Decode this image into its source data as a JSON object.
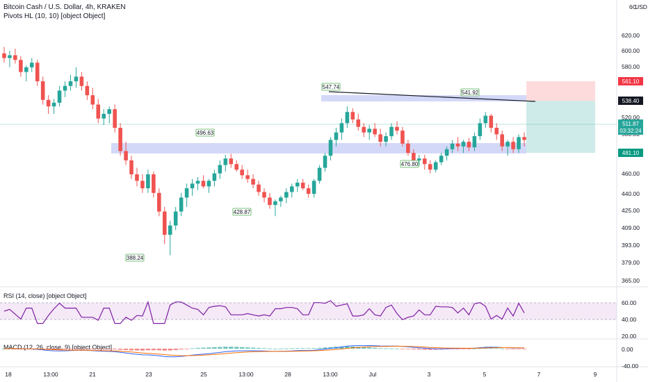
{
  "header": {
    "title": "Bitcoin Cash / U.S. Dollar, 4h, KRAKEN",
    "indicator": "Pivots HL (10, 10) [object Object]"
  },
  "price_axis": {
    "currency_label": "USD",
    "top_partial": "6C",
    "ticks": [
      "620.00",
      "600.00",
      "580.00",
      "560.00",
      "540.00",
      "520.00",
      "500.00",
      "480.00",
      "460.00",
      "440.00",
      "425.00",
      "409.00",
      "393.00",
      "379.00",
      "365.00"
    ]
  },
  "price_tags": [
    {
      "label": "561.10",
      "type": "stop",
      "color": "#f23645"
    },
    {
      "label": "538.40",
      "type": "entry",
      "color": "#131722"
    },
    {
      "label": "511.87",
      "type": "last",
      "color": "#26a69a",
      "countdown": "03:32:24"
    },
    {
      "label": "481.10",
      "type": "target",
      "color": "#089981"
    }
  ],
  "time_axis": {
    "labels": [
      "18",
      "13:00",
      "21",
      "23",
      "25",
      "13:00",
      "28",
      "13:00",
      "Jul",
      "3",
      "5",
      "7",
      "9"
    ]
  },
  "pivots": [
    "547.74",
    "541.92",
    "496.63",
    "428.87",
    "476.80",
    "388.24"
  ],
  "rsi": {
    "title": "RSI (14, close) [object Object]",
    "ticks": [
      "60.00",
      "40.00",
      "20.00"
    ]
  },
  "macd": {
    "title": "MACD (12, 26, close, 9) [object Object]",
    "ticks": [
      "0.00",
      "-40.00"
    ]
  },
  "chart_data": {
    "type": "candlestick",
    "symbol": "BCHUSD",
    "timeframe": "4h",
    "ylim": [
      360,
      640
    ],
    "candles": [
      [
        605,
        612,
        595,
        600
      ],
      [
        600,
        608,
        590,
        603
      ],
      [
        603,
        610,
        594,
        598
      ],
      [
        598,
        602,
        580,
        585
      ],
      [
        585,
        592,
        575,
        590
      ],
      [
        590,
        600,
        585,
        595
      ],
      [
        595,
        598,
        570,
        575
      ],
      [
        575,
        580,
        550,
        555
      ],
      [
        555,
        560,
        540,
        548
      ],
      [
        548,
        556,
        540,
        552
      ],
      [
        552,
        570,
        548,
        565
      ],
      [
        565,
        575,
        558,
        570
      ],
      [
        570,
        582,
        565,
        575
      ],
      [
        575,
        590,
        568,
        580
      ],
      [
        580,
        585,
        565,
        570
      ],
      [
        570,
        575,
        555,
        560
      ],
      [
        560,
        568,
        545,
        550
      ],
      [
        550,
        556,
        530,
        535
      ],
      [
        535,
        545,
        528,
        540
      ],
      [
        540,
        548,
        530,
        545
      ],
      [
        545,
        550,
        520,
        525
      ],
      [
        525,
        530,
        495,
        500
      ],
      [
        500,
        510,
        485,
        490
      ],
      [
        490,
        495,
        470,
        475
      ],
      [
        475,
        482,
        462,
        468
      ],
      [
        468,
        475,
        455,
        460
      ],
      [
        460,
        480,
        455,
        475
      ],
      [
        475,
        478,
        450,
        455
      ],
      [
        455,
        460,
        430,
        435
      ],
      [
        435,
        440,
        400,
        410
      ],
      [
        410,
        425,
        388,
        420
      ],
      [
        420,
        440,
        415,
        435
      ],
      [
        435,
        455,
        430,
        450
      ],
      [
        450,
        465,
        440,
        460
      ],
      [
        460,
        470,
        452,
        465
      ],
      [
        465,
        472,
        458,
        468
      ],
      [
        468,
        474,
        460,
        462
      ],
      [
        462,
        470,
        455,
        468
      ],
      [
        468,
        480,
        462,
        476
      ],
      [
        476,
        490,
        470,
        485
      ],
      [
        485,
        496,
        478,
        492
      ],
      [
        492,
        497,
        482,
        486
      ],
      [
        486,
        490,
        478,
        480
      ],
      [
        480,
        485,
        470,
        474
      ],
      [
        474,
        480,
        466,
        470
      ],
      [
        470,
        475,
        460,
        464
      ],
      [
        464,
        468,
        452,
        456
      ],
      [
        456,
        460,
        445,
        450
      ],
      [
        450,
        455,
        438,
        442
      ],
      [
        442,
        448,
        430,
        446
      ],
      [
        446,
        452,
        440,
        450
      ],
      [
        450,
        460,
        444,
        456
      ],
      [
        456,
        465,
        450,
        462
      ],
      [
        462,
        470,
        456,
        466
      ],
      [
        466,
        470,
        458,
        460
      ],
      [
        460,
        464,
        450,
        454
      ],
      [
        454,
        470,
        450,
        468
      ],
      [
        468,
        485,
        465,
        482
      ],
      [
        482,
        498,
        478,
        495
      ],
      [
        495,
        515,
        490,
        512
      ],
      [
        512,
        525,
        505,
        520
      ],
      [
        520,
        535,
        512,
        530
      ],
      [
        530,
        548,
        525,
        542
      ],
      [
        542,
        546,
        530,
        534
      ],
      [
        534,
        540,
        522,
        526
      ],
      [
        526,
        530,
        515,
        520
      ],
      [
        520,
        528,
        512,
        524
      ],
      [
        524,
        530,
        515,
        518
      ],
      [
        518,
        524,
        505,
        510
      ],
      [
        510,
        520,
        505,
        516
      ],
      [
        516,
        530,
        512,
        526
      ],
      [
        526,
        532,
        518,
        522
      ],
      [
        522,
        526,
        505,
        508
      ],
      [
        508,
        512,
        495,
        498
      ],
      [
        498,
        502,
        485,
        490
      ],
      [
        490,
        496,
        484,
        492
      ],
      [
        492,
        496,
        480,
        486
      ],
      [
        486,
        490,
        476,
        480
      ],
      [
        480,
        490,
        477,
        488
      ],
      [
        488,
        498,
        485,
        495
      ],
      [
        495,
        505,
        490,
        502
      ],
      [
        502,
        512,
        498,
        508
      ],
      [
        508,
        515,
        500,
        505
      ],
      [
        505,
        512,
        498,
        510
      ],
      [
        510,
        514,
        500,
        504
      ],
      [
        504,
        520,
        500,
        516
      ],
      [
        516,
        535,
        512,
        530
      ],
      [
        530,
        542,
        525,
        538
      ],
      [
        538,
        540,
        520,
        525
      ],
      [
        525,
        530,
        512,
        518
      ],
      [
        518,
        522,
        500,
        505
      ],
      [
        505,
        512,
        495,
        510
      ],
      [
        510,
        515,
        498,
        502
      ],
      [
        502,
        518,
        498,
        515
      ],
      [
        515,
        520,
        505,
        512
      ]
    ]
  }
}
